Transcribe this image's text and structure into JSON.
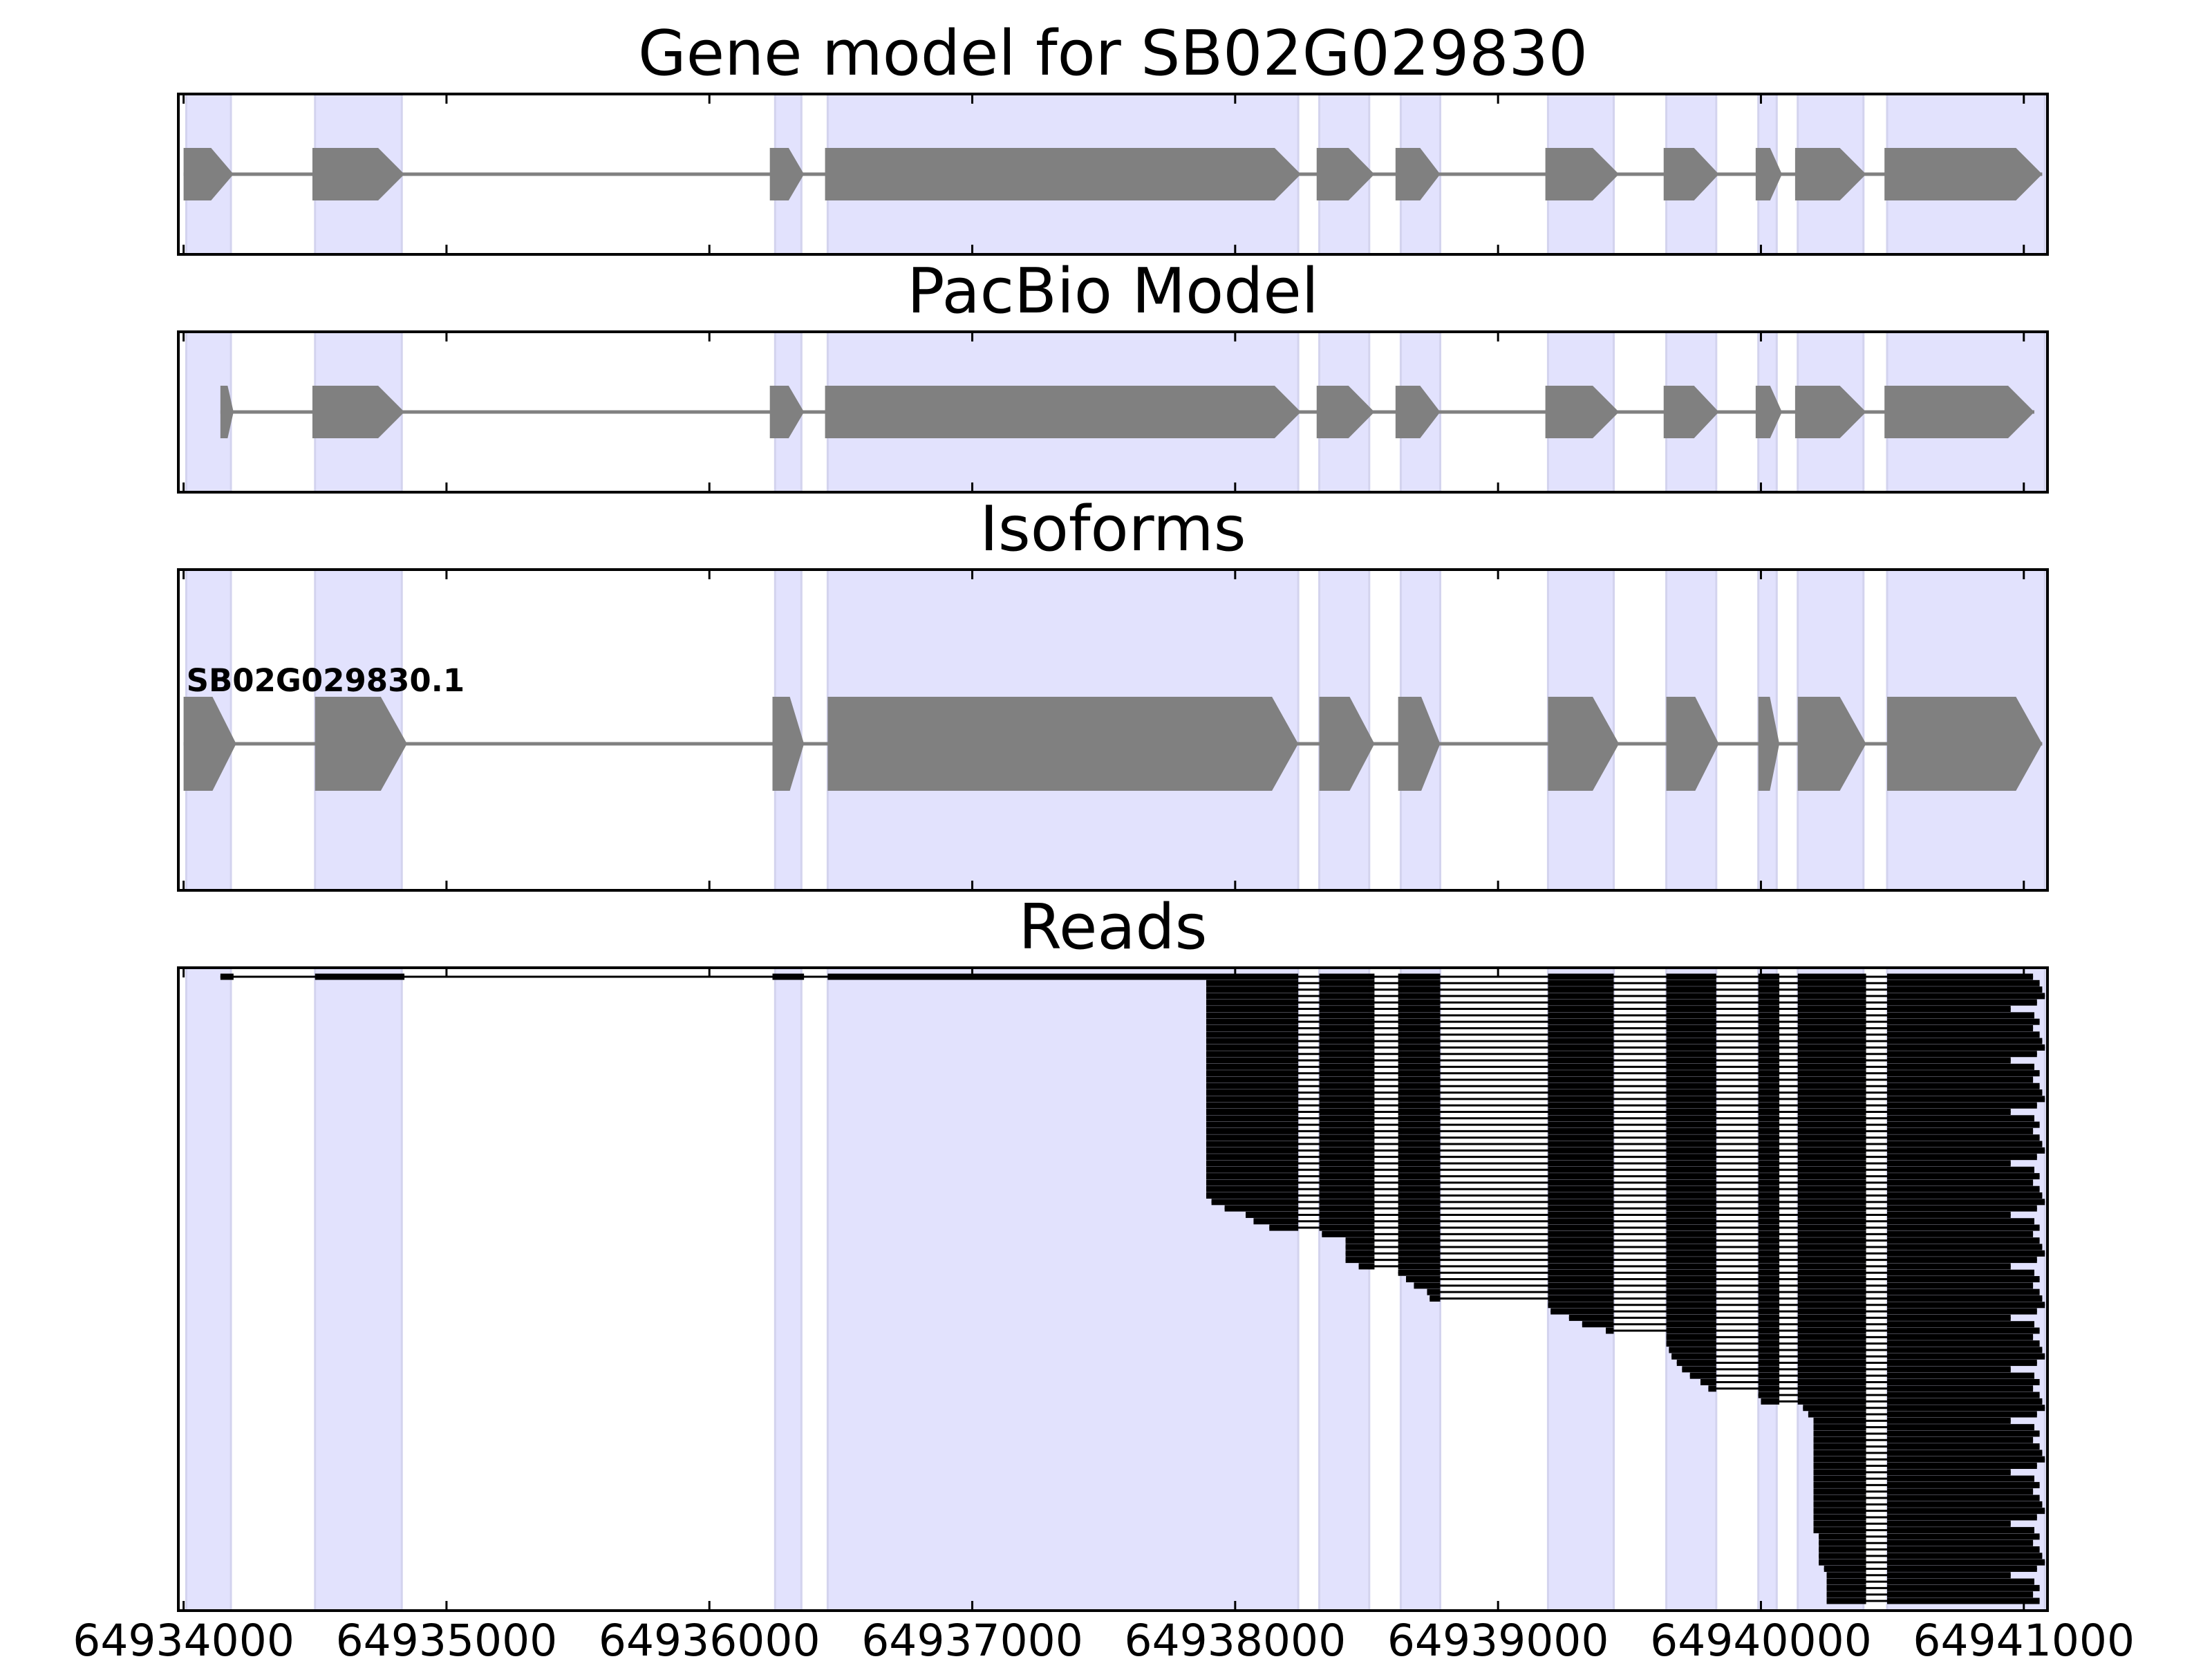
{
  "chart_data": {
    "type": "gene-model",
    "panels": [
      {
        "id": "gene-model",
        "title": "Gene model for SB02G029830"
      },
      {
        "id": "pacbio-model",
        "title": "PacBio Model"
      },
      {
        "id": "isoforms",
        "title": "Isoforms"
      },
      {
        "id": "reads",
        "title": "Reads"
      }
    ],
    "xlim": [
      64933980,
      64941090
    ],
    "xticks": [
      64934000,
      64935000,
      64936000,
      64937000,
      64938000,
      64939000,
      64940000,
      64941000
    ],
    "xtick_labels": [
      "64934000",
      "64935000",
      "64936000",
      "64937000",
      "64938000",
      "64939000",
      "64940000",
      "64941000"
    ],
    "shaded_regions": [
      [
        64934010,
        64934180
      ],
      [
        64934500,
        64934830
      ],
      [
        64936250,
        64936350
      ],
      [
        64936450,
        64938240
      ],
      [
        64938320,
        64938510
      ],
      [
        64938630,
        64938780
      ],
      [
        64939190,
        64939440
      ],
      [
        64939640,
        64939830
      ],
      [
        64939990,
        64940060
      ],
      [
        64940140,
        64940390
      ],
      [
        64940480,
        64941080
      ]
    ],
    "shade_color": "#e2e2fd",
    "feature_color": "#808080",
    "gene_model": {
      "exons": [
        [
          64934000,
          64934190
        ],
        [
          64934490,
          64934840
        ],
        [
          64936230,
          64936360
        ],
        [
          64936440,
          64938250
        ],
        [
          64938310,
          64938530
        ],
        [
          64938610,
          64938780
        ],
        [
          64939180,
          64939460
        ],
        [
          64939630,
          64939840
        ],
        [
          64939980,
          64940080
        ],
        [
          64940130,
          64940400
        ],
        [
          64940470,
          64941070
        ]
      ]
    },
    "pacbio_model": {
      "exons": [
        [
          64934140,
          64934190
        ],
        [
          64934490,
          64934840
        ],
        [
          64936230,
          64936360
        ],
        [
          64936440,
          64938250
        ],
        [
          64938310,
          64938530
        ],
        [
          64938610,
          64938780
        ],
        [
          64939180,
          64939460
        ],
        [
          64939630,
          64939840
        ],
        [
          64939980,
          64940080
        ],
        [
          64940130,
          64940400
        ],
        [
          64940470,
          64941040
        ]
      ]
    },
    "isoforms": [
      {
        "name": "SB02G029830.1",
        "exons": [
          [
            64934000,
            64934200
          ],
          [
            64934500,
            64934850
          ],
          [
            64936240,
            64936360
          ],
          [
            64936450,
            64938240
          ],
          [
            64938320,
            64938530
          ],
          [
            64938620,
            64938780
          ],
          [
            64939190,
            64939460
          ],
          [
            64939640,
            64939840
          ],
          [
            64939990,
            64940070
          ],
          [
            64940140,
            64940400
          ],
          [
            64940480,
            64941070
          ]
        ]
      }
    ],
    "reads": {
      "count": 98,
      "tail_end_bp": 64940250,
      "canonical_exons": [
        [
          64934140,
          64934190
        ],
        [
          64934500,
          64934840
        ],
        [
          64936240,
          64936360
        ],
        [
          64936450,
          64938240
        ],
        [
          64938320,
          64938530
        ],
        [
          64938620,
          64938780
        ],
        [
          64939190,
          64939440
        ],
        [
          64939640,
          64939830
        ],
        [
          64939990,
          64940070
        ],
        [
          64940140,
          64940400
        ],
        [
          64940480,
          64941030
        ]
      ],
      "start_positions": [
        64934140,
        64937890,
        64937890,
        64937890,
        64937890,
        64937890,
        64937890,
        64937890,
        64937890,
        64937890,
        64937890,
        64937890,
        64937890,
        64937890,
        64937890,
        64937890,
        64937890,
        64937890,
        64937890,
        64937890,
        64937890,
        64937890,
        64937890,
        64937890,
        64937890,
        64937890,
        64937890,
        64937890,
        64937890,
        64937890,
        64937890,
        64937890,
        64937890,
        64937890,
        64937890,
        64937910,
        64937960,
        64938040,
        64938070,
        64938130,
        64938330,
        64938420,
        64938420,
        64938420,
        64938420,
        64938470,
        64938620,
        64938650,
        64938680,
        64938730,
        64938740,
        64939190,
        64939200,
        64939270,
        64939320,
        64939410,
        64939440,
        64939640,
        64939650,
        64939660,
        64939680,
        64939700,
        64939730,
        64939770,
        64939800,
        64939990,
        64940000,
        64940160,
        64940180,
        64940200,
        64940200,
        64940200,
        64940200,
        64940200,
        64940200,
        64940200,
        64940200,
        64940200,
        64940200,
        64940200,
        64940200,
        64940200,
        64940200,
        64940200,
        64940200,
        64940200,
        64940200,
        64940220,
        64940220,
        64940220,
        64940220,
        64940220,
        64940240,
        64940250,
        64940250,
        64940250,
        64940250,
        64940250
      ]
    }
  }
}
